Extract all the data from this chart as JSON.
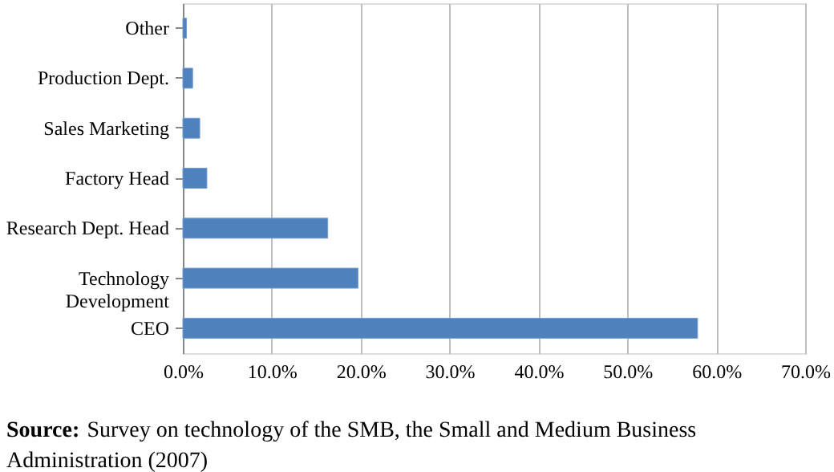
{
  "chart_data": {
    "type": "bar",
    "orientation": "horizontal",
    "categories": [
      "Other",
      "Production Dept.",
      "Sales Marketing",
      "Factory Head",
      "Research Dept. Head",
      "Technology Development",
      "CEO"
    ],
    "values": [
      0.4,
      1.1,
      1.9,
      2.7,
      16.3,
      19.7,
      57.9
    ],
    "color": "#4f81bd",
    "xlim": [
      0,
      70
    ],
    "xticks": [
      {
        "value": 0,
        "label": "0.0%"
      },
      {
        "value": 10,
        "label": "10.0%"
      },
      {
        "value": 20,
        "label": "20.0%"
      },
      {
        "value": 30,
        "label": "30.0%"
      },
      {
        "value": 40,
        "label": "40.0%"
      },
      {
        "value": 50,
        "label": "50.0%"
      },
      {
        "value": 60,
        "label": "60.0%"
      },
      {
        "value": 70,
        "label": "70.0%"
      }
    ],
    "grid": "x",
    "annotations": [
      "Source: Survey on technology of the SMB, the Small and Medium Business Administration (2007)"
    ]
  }
}
